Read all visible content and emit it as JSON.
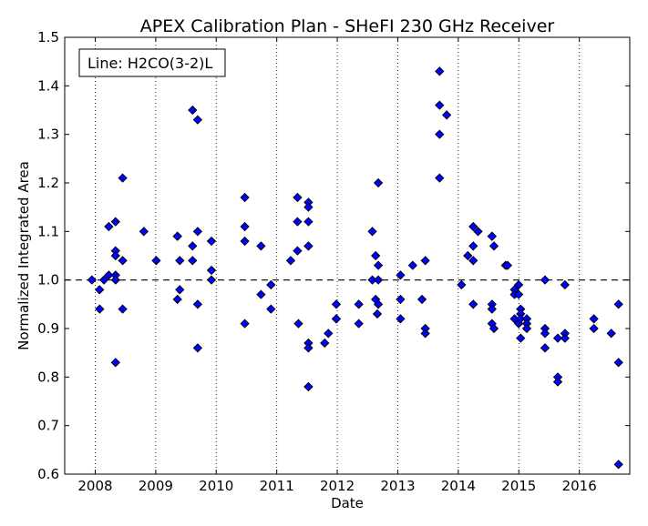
{
  "chart_data": {
    "type": "scatter",
    "title": "APEX Calibration Plan - SHeFI 230 GHz Receiver",
    "xlabel": "Date",
    "ylabel": "Normalized Integrated Area",
    "xlim": [
      "2007-07-01",
      "2016-11-01"
    ],
    "ylim": [
      0.6,
      1.5
    ],
    "xticks": [
      "2008",
      "2009",
      "2010",
      "2011",
      "2012",
      "2013",
      "2014",
      "2015",
      "2016"
    ],
    "yticks": [
      "0.6",
      "0.7",
      "0.8",
      "0.9",
      "1.0",
      "1.1",
      "1.2",
      "1.3",
      "1.4",
      "1.5"
    ],
    "vertical_gridlines": "dotted, at each year",
    "reference_line": {
      "y": 1.0,
      "style": "dashed"
    },
    "legend": {
      "text": "Line: H2CO(3-2)L",
      "position": "top-left"
    },
    "marker_color": "#0000ff",
    "series": [
      {
        "points": [
          [
            "2007-12-12",
            1.0
          ],
          [
            "2008-01-27",
            0.98
          ],
          [
            "2008-01-28",
            0.94
          ],
          [
            "2008-02-23",
            1.0
          ],
          [
            "2008-03-23",
            1.11
          ],
          [
            "2008-03-23",
            1.01
          ],
          [
            "2008-05-03",
            1.12
          ],
          [
            "2008-05-03",
            1.06
          ],
          [
            "2008-05-03",
            1.05
          ],
          [
            "2008-05-03",
            1.01
          ],
          [
            "2008-05-03",
            1.0
          ],
          [
            "2008-05-03",
            0.83
          ],
          [
            "2008-06-15",
            1.21
          ],
          [
            "2008-06-15",
            1.04
          ],
          [
            "2008-06-15",
            0.94
          ],
          [
            "2008-10-21",
            1.1
          ],
          [
            "2009-01-04",
            1.04
          ],
          [
            "2009-05-12",
            1.09
          ],
          [
            "2009-05-12",
            1.09
          ],
          [
            "2009-05-12",
            0.96
          ],
          [
            "2009-05-26",
            1.04
          ],
          [
            "2009-05-26",
            0.98
          ],
          [
            "2009-08-11",
            1.35
          ],
          [
            "2009-08-11",
            1.07
          ],
          [
            "2009-08-11",
            1.04
          ],
          [
            "2009-09-11",
            1.33
          ],
          [
            "2009-09-11",
            1.1
          ],
          [
            "2009-09-11",
            0.95
          ],
          [
            "2009-09-11",
            0.86
          ],
          [
            "2009-12-03",
            1.08
          ],
          [
            "2009-12-03",
            1.02
          ],
          [
            "2009-12-03",
            1.0
          ],
          [
            "2010-06-22",
            1.17
          ],
          [
            "2010-06-22",
            1.11
          ],
          [
            "2010-06-22",
            1.08
          ],
          [
            "2010-06-22",
            0.91
          ],
          [
            "2010-09-28",
            1.07
          ],
          [
            "2010-09-28",
            0.97
          ],
          [
            "2010-11-27",
            0.99
          ],
          [
            "2010-11-27",
            0.94
          ],
          [
            "2011-03-26",
            1.04
          ],
          [
            "2011-05-06",
            1.17
          ],
          [
            "2011-05-06",
            1.12
          ],
          [
            "2011-05-06",
            1.06
          ],
          [
            "2011-05-12",
            0.91
          ],
          [
            "2011-07-11",
            1.16
          ],
          [
            "2011-07-11",
            1.15
          ],
          [
            "2011-07-11",
            1.12
          ],
          [
            "2011-07-11",
            1.07
          ],
          [
            "2011-07-11",
            1.07
          ],
          [
            "2011-07-11",
            0.87
          ],
          [
            "2011-07-11",
            0.86
          ],
          [
            "2011-07-11",
            0.78
          ],
          [
            "2011-07-11",
            0.78
          ],
          [
            "2011-10-17",
            0.87
          ],
          [
            "2011-11-08",
            0.89
          ],
          [
            "2011-12-26",
            0.95
          ],
          [
            "2011-12-26",
            0.92
          ],
          [
            "2011-12-26",
            0.92
          ],
          [
            "2012-05-10",
            0.95
          ],
          [
            "2012-05-10",
            0.91
          ],
          [
            "2012-07-31",
            1.1
          ],
          [
            "2012-07-31",
            1.0
          ],
          [
            "2012-08-20",
            1.05
          ],
          [
            "2012-08-20",
            0.96
          ],
          [
            "2012-09-05",
            1.2
          ],
          [
            "2012-09-05",
            1.03
          ],
          [
            "2012-09-05",
            1.0
          ],
          [
            "2012-09-05",
            0.95
          ],
          [
            "2012-08-30",
            0.93
          ],
          [
            "2013-01-17",
            1.01
          ],
          [
            "2013-01-17",
            0.96
          ],
          [
            "2013-01-17",
            0.92
          ],
          [
            "2013-04-01",
            1.03
          ],
          [
            "2013-05-27",
            0.96
          ],
          [
            "2013-06-16",
            1.04
          ],
          [
            "2013-06-16",
            0.9
          ],
          [
            "2013-06-16",
            0.89
          ],
          [
            "2013-09-10",
            1.43
          ],
          [
            "2013-09-10",
            1.36
          ],
          [
            "2013-09-10",
            1.3
          ],
          [
            "2013-09-10",
            1.21
          ],
          [
            "2013-10-23",
            1.34
          ],
          [
            "2014-01-20",
            0.99
          ],
          [
            "2014-02-27",
            1.05
          ],
          [
            "2014-04-01",
            1.11
          ],
          [
            "2014-04-01",
            1.07
          ],
          [
            "2014-04-01",
            1.04
          ],
          [
            "2014-04-01",
            0.95
          ],
          [
            "2014-04-30",
            1.1
          ],
          [
            "2014-07-23",
            1.09
          ],
          [
            "2014-07-23",
            1.09
          ],
          [
            "2014-07-23",
            0.95
          ],
          [
            "2014-07-23",
            0.94
          ],
          [
            "2014-07-23",
            0.91
          ],
          [
            "2014-08-04",
            1.07
          ],
          [
            "2014-08-04",
            0.9
          ],
          [
            "2014-10-13",
            1.03
          ],
          [
            "2014-10-25",
            1.03
          ],
          [
            "2014-12-06",
            0.98
          ],
          [
            "2014-12-06",
            0.97
          ],
          [
            "2014-12-06",
            0.92
          ],
          [
            "2014-12-31",
            0.99
          ],
          [
            "2014-12-31",
            0.97
          ],
          [
            "2014-12-31",
            0.91
          ],
          [
            "2015-01-12",
            0.94
          ],
          [
            "2015-01-12",
            0.93
          ],
          [
            "2015-01-12",
            0.88
          ],
          [
            "2015-01-12",
            0.92
          ],
          [
            "2015-02-18",
            0.92
          ],
          [
            "2015-02-18",
            0.91
          ],
          [
            "2015-02-18",
            0.9
          ],
          [
            "2015-06-08",
            1.0
          ],
          [
            "2015-06-08",
            0.9
          ],
          [
            "2015-06-08",
            0.89
          ],
          [
            "2015-06-08",
            0.86
          ],
          [
            "2015-08-24",
            0.88
          ],
          [
            "2015-08-24",
            0.8
          ],
          [
            "2015-08-24",
            0.79
          ],
          [
            "2015-10-06",
            0.99
          ],
          [
            "2015-10-06",
            0.89
          ],
          [
            "2015-10-06",
            0.88
          ],
          [
            "2016-03-29",
            0.92
          ],
          [
            "2016-03-29",
            0.9
          ],
          [
            "2016-07-12",
            0.89
          ],
          [
            "2016-08-25",
            0.95
          ],
          [
            "2016-08-25",
            0.83
          ],
          [
            "2016-08-25",
            0.62
          ]
        ]
      }
    ]
  }
}
